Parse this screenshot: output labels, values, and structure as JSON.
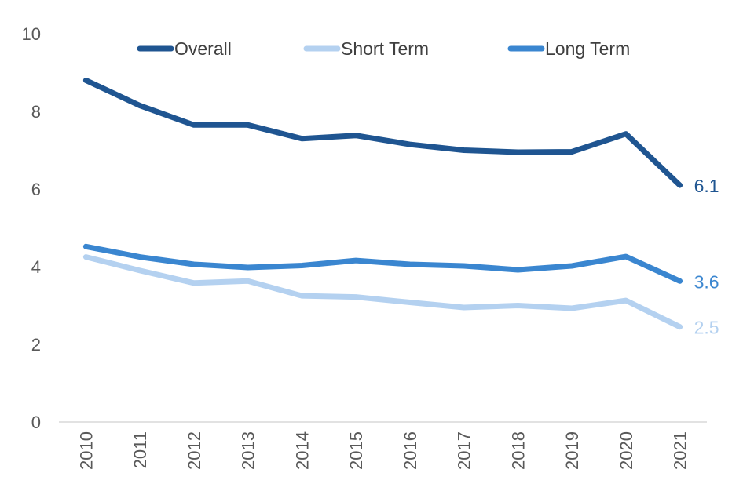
{
  "chart_data": {
    "type": "line",
    "title": "",
    "xlabel": "",
    "ylabel": "",
    "x": [
      "2010",
      "2011",
      "2012",
      "2013",
      "2014",
      "2015",
      "2016",
      "2017",
      "2018",
      "2019",
      "2020",
      "2021"
    ],
    "ylim": [
      0,
      10
    ],
    "yticks": [
      "0",
      "2",
      "4",
      "6",
      "8",
      "10"
    ],
    "grid": false,
    "legend_position": "top",
    "series": [
      {
        "name": "Overall",
        "color": "#1f5591",
        "values": [
          8.8,
          8.15,
          7.65,
          7.65,
          7.3,
          7.38,
          7.15,
          7.0,
          6.95,
          6.96,
          7.42,
          6.1
        ],
        "end_label": "6.1"
      },
      {
        "name": "Short Term",
        "color": "#b4d1f0",
        "values": [
          4.25,
          3.9,
          3.58,
          3.63,
          3.25,
          3.22,
          3.08,
          2.95,
          3.0,
          2.93,
          3.13,
          2.45
        ],
        "end_label": "2.5"
      },
      {
        "name": "Long Term",
        "color": "#3a86d0",
        "values": [
          4.52,
          4.25,
          4.06,
          3.98,
          4.03,
          4.16,
          4.06,
          4.02,
          3.92,
          4.02,
          4.26,
          3.63
        ],
        "end_label": "3.6"
      }
    ]
  }
}
